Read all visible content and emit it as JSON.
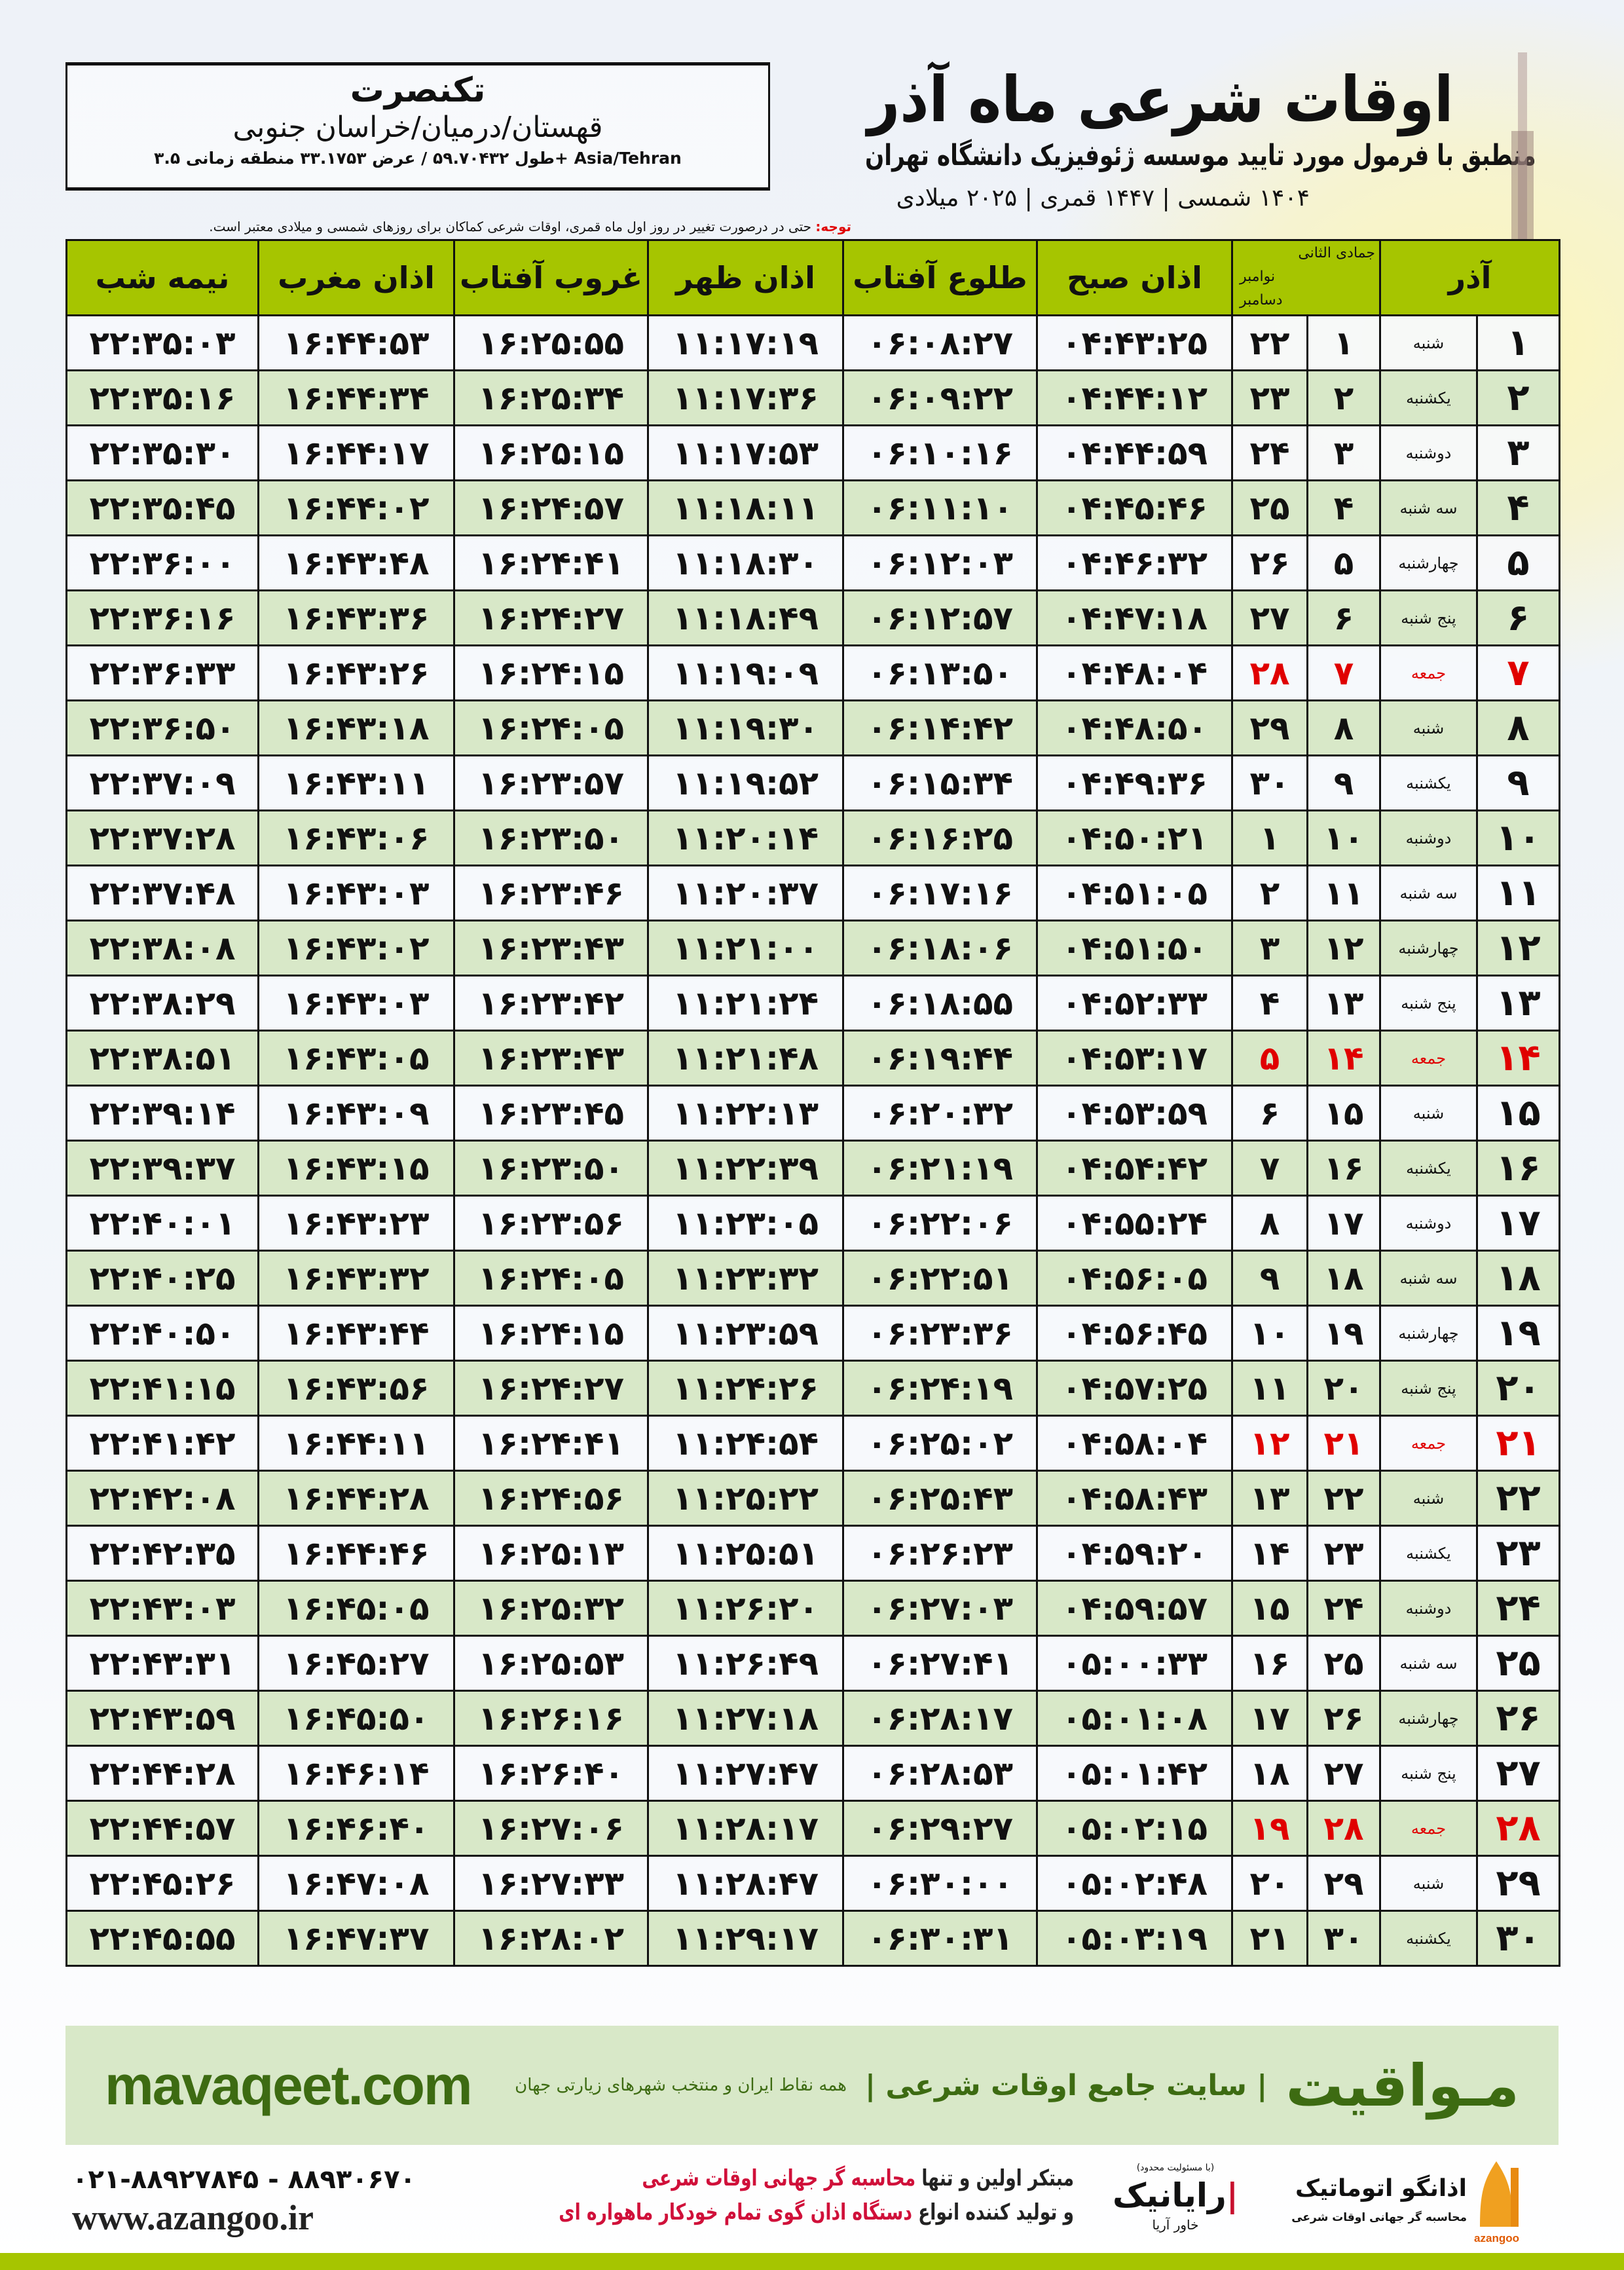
{
  "location": {
    "city": "تکنصرت",
    "region": "قهستان/درمیان/خراسان جنوبی",
    "coords": "طول ۵۹.۷۰۴۳۲ / عرض ۳۳.۱۷۵۳ منطقه زمانی ۳.۵+ Asia/Tehran"
  },
  "header": {
    "title": "اوقات شرعی ماه آذر",
    "subtitle": "منطبق با فرمول مورد تایید موسسه ژئوفیزیک دانشگاه تهران",
    "years": "۱۴۰۴ شمسی | ۱۴۴۷ قمری | ۲۰۲۵ میلادی"
  },
  "note": {
    "label": "توجه:",
    "text": " حتی در درصورت تغییر در روز اول ماه قمری، اوقات شرعی کماکان برای روزهای شمسی و میلادی معتبر است."
  },
  "colors": {
    "header_green": "#a6c500",
    "row_green": "#d8e8c8",
    "holiday": "#e00000",
    "brand": "#3d6b12"
  },
  "table": {
    "columns": {
      "nime_shab": "نیمه شب",
      "maghrib": "اذان مغرب",
      "ghorub": "غروب آفتاب",
      "zohr": "اذان ظهر",
      "tolu": "طلوع آفتاب",
      "sobh": "اذان صبح",
      "lunar_month": "جمادی الثانی",
      "greg_month_1": "نوامبر",
      "greg_month_2": "دسامبر",
      "solar_month": "آذر"
    },
    "holiday_weekday": "جمعه",
    "rows": [
      {
        "azar": "۱",
        "weekday": "شنبه",
        "lunar": "۱",
        "greg": "۲۲",
        "sobh": "۰۴:۴۳:۲۵",
        "tolu": "۰۶:۰۸:۲۷",
        "zohr": "۱۱:۱۷:۱۹",
        "ghorub": "۱۶:۲۵:۵۵",
        "maghrib": "۱۶:۴۴:۵۳",
        "nime": "۲۲:۳۵:۰۳"
      },
      {
        "azar": "۲",
        "weekday": "یکشنبه",
        "lunar": "۲",
        "greg": "۲۳",
        "sobh": "۰۴:۴۴:۱۲",
        "tolu": "۰۶:۰۹:۲۲",
        "zohr": "۱۱:۱۷:۳۶",
        "ghorub": "۱۶:۲۵:۳۴",
        "maghrib": "۱۶:۴۴:۳۴",
        "nime": "۲۲:۳۵:۱۶"
      },
      {
        "azar": "۳",
        "weekday": "دوشنبه",
        "lunar": "۳",
        "greg": "۲۴",
        "sobh": "۰۴:۴۴:۵۹",
        "tolu": "۰۶:۱۰:۱۶",
        "zohr": "۱۱:۱۷:۵۳",
        "ghorub": "۱۶:۲۵:۱۵",
        "maghrib": "۱۶:۴۴:۱۷",
        "nime": "۲۲:۳۵:۳۰"
      },
      {
        "azar": "۴",
        "weekday": "سه شنبه",
        "lunar": "۴",
        "greg": "۲۵",
        "sobh": "۰۴:۴۵:۴۶",
        "tolu": "۰۶:۱۱:۱۰",
        "zohr": "۱۱:۱۸:۱۱",
        "ghorub": "۱۶:۲۴:۵۷",
        "maghrib": "۱۶:۴۴:۰۲",
        "nime": "۲۲:۳۵:۴۵"
      },
      {
        "azar": "۵",
        "weekday": "چهارشنبه",
        "lunar": "۵",
        "greg": "۲۶",
        "sobh": "۰۴:۴۶:۳۲",
        "tolu": "۰۶:۱۲:۰۳",
        "zohr": "۱۱:۱۸:۳۰",
        "ghorub": "۱۶:۲۴:۴۱",
        "maghrib": "۱۶:۴۳:۴۸",
        "nime": "۲۲:۳۶:۰۰"
      },
      {
        "azar": "۶",
        "weekday": "پنج شنبه",
        "lunar": "۶",
        "greg": "۲۷",
        "sobh": "۰۴:۴۷:۱۸",
        "tolu": "۰۶:۱۲:۵۷",
        "zohr": "۱۱:۱۸:۴۹",
        "ghorub": "۱۶:۲۴:۲۷",
        "maghrib": "۱۶:۴۳:۳۶",
        "nime": "۲۲:۳۶:۱۶"
      },
      {
        "azar": "۷",
        "weekday": "جمعه",
        "lunar": "۷",
        "greg": "۲۸",
        "sobh": "۰۴:۴۸:۰۴",
        "tolu": "۰۶:۱۳:۵۰",
        "zohr": "۱۱:۱۹:۰۹",
        "ghorub": "۱۶:۲۴:۱۵",
        "maghrib": "۱۶:۴۳:۲۶",
        "nime": "۲۲:۳۶:۳۳"
      },
      {
        "azar": "۸",
        "weekday": "شنبه",
        "lunar": "۸",
        "greg": "۲۹",
        "sobh": "۰۴:۴۸:۵۰",
        "tolu": "۰۶:۱۴:۴۲",
        "zohr": "۱۱:۱۹:۳۰",
        "ghorub": "۱۶:۲۴:۰۵",
        "maghrib": "۱۶:۴۳:۱۸",
        "nime": "۲۲:۳۶:۵۰"
      },
      {
        "azar": "۹",
        "weekday": "یکشنبه",
        "lunar": "۹",
        "greg": "۳۰",
        "sobh": "۰۴:۴۹:۳۶",
        "tolu": "۰۶:۱۵:۳۴",
        "zohr": "۱۱:۱۹:۵۲",
        "ghorub": "۱۶:۲۳:۵۷",
        "maghrib": "۱۶:۴۳:۱۱",
        "nime": "۲۲:۳۷:۰۹"
      },
      {
        "azar": "۱۰",
        "weekday": "دوشنبه",
        "lunar": "۱۰",
        "greg": "۱",
        "sobh": "۰۴:۵۰:۲۱",
        "tolu": "۰۶:۱۶:۲۵",
        "zohr": "۱۱:۲۰:۱۴",
        "ghorub": "۱۶:۲۳:۵۰",
        "maghrib": "۱۶:۴۳:۰۶",
        "nime": "۲۲:۳۷:۲۸"
      },
      {
        "azar": "۱۱",
        "weekday": "سه شنبه",
        "lunar": "۱۱",
        "greg": "۲",
        "sobh": "۰۴:۵۱:۰۵",
        "tolu": "۰۶:۱۷:۱۶",
        "zohr": "۱۱:۲۰:۳۷",
        "ghorub": "۱۶:۲۳:۴۶",
        "maghrib": "۱۶:۴۳:۰۳",
        "nime": "۲۲:۳۷:۴۸"
      },
      {
        "azar": "۱۲",
        "weekday": "چهارشنبه",
        "lunar": "۱۲",
        "greg": "۳",
        "sobh": "۰۴:۵۱:۵۰",
        "tolu": "۰۶:۱۸:۰۶",
        "zohr": "۱۱:۲۱:۰۰",
        "ghorub": "۱۶:۲۳:۴۳",
        "maghrib": "۱۶:۴۳:۰۲",
        "nime": "۲۲:۳۸:۰۸"
      },
      {
        "azar": "۱۳",
        "weekday": "پنج شنبه",
        "lunar": "۱۳",
        "greg": "۴",
        "sobh": "۰۴:۵۲:۳۳",
        "tolu": "۰۶:۱۸:۵۵",
        "zohr": "۱۱:۲۱:۲۴",
        "ghorub": "۱۶:۲۳:۴۲",
        "maghrib": "۱۶:۴۳:۰۳",
        "nime": "۲۲:۳۸:۲۹"
      },
      {
        "azar": "۱۴",
        "weekday": "جمعه",
        "lunar": "۱۴",
        "greg": "۵",
        "sobh": "۰۴:۵۳:۱۷",
        "tolu": "۰۶:۱۹:۴۴",
        "zohr": "۱۱:۲۱:۴۸",
        "ghorub": "۱۶:۲۳:۴۳",
        "maghrib": "۱۶:۴۳:۰۵",
        "nime": "۲۲:۳۸:۵۱"
      },
      {
        "azar": "۱۵",
        "weekday": "شنبه",
        "lunar": "۱۵",
        "greg": "۶",
        "sobh": "۰۴:۵۳:۵۹",
        "tolu": "۰۶:۲۰:۳۲",
        "zohr": "۱۱:۲۲:۱۳",
        "ghorub": "۱۶:۲۳:۴۵",
        "maghrib": "۱۶:۴۳:۰۹",
        "nime": "۲۲:۳۹:۱۴"
      },
      {
        "azar": "۱۶",
        "weekday": "یکشنبه",
        "lunar": "۱۶",
        "greg": "۷",
        "sobh": "۰۴:۵۴:۴۲",
        "tolu": "۰۶:۲۱:۱۹",
        "zohr": "۱۱:۲۲:۳۹",
        "ghorub": "۱۶:۲۳:۵۰",
        "maghrib": "۱۶:۴۳:۱۵",
        "nime": "۲۲:۳۹:۳۷"
      },
      {
        "azar": "۱۷",
        "weekday": "دوشنبه",
        "lunar": "۱۷",
        "greg": "۸",
        "sobh": "۰۴:۵۵:۲۴",
        "tolu": "۰۶:۲۲:۰۶",
        "zohr": "۱۱:۲۳:۰۵",
        "ghorub": "۱۶:۲۳:۵۶",
        "maghrib": "۱۶:۴۳:۲۳",
        "nime": "۲۲:۴۰:۰۱"
      },
      {
        "azar": "۱۸",
        "weekday": "سه شنبه",
        "lunar": "۱۸",
        "greg": "۹",
        "sobh": "۰۴:۵۶:۰۵",
        "tolu": "۰۶:۲۲:۵۱",
        "zohr": "۱۱:۲۳:۳۲",
        "ghorub": "۱۶:۲۴:۰۵",
        "maghrib": "۱۶:۴۳:۳۲",
        "nime": "۲۲:۴۰:۲۵"
      },
      {
        "azar": "۱۹",
        "weekday": "چهارشنبه",
        "lunar": "۱۹",
        "greg": "۱۰",
        "sobh": "۰۴:۵۶:۴۵",
        "tolu": "۰۶:۲۳:۳۶",
        "zohr": "۱۱:۲۳:۵۹",
        "ghorub": "۱۶:۲۴:۱۵",
        "maghrib": "۱۶:۴۳:۴۴",
        "nime": "۲۲:۴۰:۵۰"
      },
      {
        "azar": "۲۰",
        "weekday": "پنج شنبه",
        "lunar": "۲۰",
        "greg": "۱۱",
        "sobh": "۰۴:۵۷:۲۵",
        "tolu": "۰۶:۲۴:۱۹",
        "zohr": "۱۱:۲۴:۲۶",
        "ghorub": "۱۶:۲۴:۲۷",
        "maghrib": "۱۶:۴۳:۵۶",
        "nime": "۲۲:۴۱:۱۵"
      },
      {
        "azar": "۲۱",
        "weekday": "جمعه",
        "lunar": "۲۱",
        "greg": "۱۲",
        "sobh": "۰۴:۵۸:۰۴",
        "tolu": "۰۶:۲۵:۰۲",
        "zohr": "۱۱:۲۴:۵۴",
        "ghorub": "۱۶:۲۴:۴۱",
        "maghrib": "۱۶:۴۴:۱۱",
        "nime": "۲۲:۴۱:۴۲"
      },
      {
        "azar": "۲۲",
        "weekday": "شنبه",
        "lunar": "۲۲",
        "greg": "۱۳",
        "sobh": "۰۴:۵۸:۴۳",
        "tolu": "۰۶:۲۵:۴۳",
        "zohr": "۱۱:۲۵:۲۲",
        "ghorub": "۱۶:۲۴:۵۶",
        "maghrib": "۱۶:۴۴:۲۸",
        "nime": "۲۲:۴۲:۰۸"
      },
      {
        "azar": "۲۳",
        "weekday": "یکشنبه",
        "lunar": "۲۳",
        "greg": "۱۴",
        "sobh": "۰۴:۵۹:۲۰",
        "tolu": "۰۶:۲۶:۲۳",
        "zohr": "۱۱:۲۵:۵۱",
        "ghorub": "۱۶:۲۵:۱۳",
        "maghrib": "۱۶:۴۴:۴۶",
        "nime": "۲۲:۴۲:۳۵"
      },
      {
        "azar": "۲۴",
        "weekday": "دوشنبه",
        "lunar": "۲۴",
        "greg": "۱۵",
        "sobh": "۰۴:۵۹:۵۷",
        "tolu": "۰۶:۲۷:۰۳",
        "zohr": "۱۱:۲۶:۲۰",
        "ghorub": "۱۶:۲۵:۳۲",
        "maghrib": "۱۶:۴۵:۰۵",
        "nime": "۲۲:۴۳:۰۳"
      },
      {
        "azar": "۲۵",
        "weekday": "سه شنبه",
        "lunar": "۲۵",
        "greg": "۱۶",
        "sobh": "۰۵:۰۰:۳۳",
        "tolu": "۰۶:۲۷:۴۱",
        "zohr": "۱۱:۲۶:۴۹",
        "ghorub": "۱۶:۲۵:۵۳",
        "maghrib": "۱۶:۴۵:۲۷",
        "nime": "۲۲:۴۳:۳۱"
      },
      {
        "azar": "۲۶",
        "weekday": "چهارشنبه",
        "lunar": "۲۶",
        "greg": "۱۷",
        "sobh": "۰۵:۰۱:۰۸",
        "tolu": "۰۶:۲۸:۱۷",
        "zohr": "۱۱:۲۷:۱۸",
        "ghorub": "۱۶:۲۶:۱۶",
        "maghrib": "۱۶:۴۵:۵۰",
        "nime": "۲۲:۴۳:۵۹"
      },
      {
        "azar": "۲۷",
        "weekday": "پنج شنبه",
        "lunar": "۲۷",
        "greg": "۱۸",
        "sobh": "۰۵:۰۱:۴۲",
        "tolu": "۰۶:۲۸:۵۳",
        "zohr": "۱۱:۲۷:۴۷",
        "ghorub": "۱۶:۲۶:۴۰",
        "maghrib": "۱۶:۴۶:۱۴",
        "nime": "۲۲:۴۴:۲۸"
      },
      {
        "azar": "۲۸",
        "weekday": "جمعه",
        "lunar": "۲۸",
        "greg": "۱۹",
        "sobh": "۰۵:۰۲:۱۵",
        "tolu": "۰۶:۲۹:۲۷",
        "zohr": "۱۱:۲۸:۱۷",
        "ghorub": "۱۶:۲۷:۰۶",
        "maghrib": "۱۶:۴۶:۴۰",
        "nime": "۲۲:۴۴:۵۷"
      },
      {
        "azar": "۲۹",
        "weekday": "شنبه",
        "lunar": "۲۹",
        "greg": "۲۰",
        "sobh": "۰۵:۰۲:۴۸",
        "tolu": "۰۶:۳۰:۰۰",
        "zohr": "۱۱:۲۸:۴۷",
        "ghorub": "۱۶:۲۷:۳۳",
        "maghrib": "۱۶:۴۷:۰۸",
        "nime": "۲۲:۴۵:۲۶"
      },
      {
        "azar": "۳۰",
        "weekday": "یکشنبه",
        "lunar": "۳۰",
        "greg": "۲۱",
        "sobh": "۰۵:۰۳:۱۹",
        "tolu": "۰۶:۳۰:۳۱",
        "zohr": "۱۱:۲۹:۱۷",
        "ghorub": "۱۶:۲۸:۰۲",
        "maghrib": "۱۶:۴۷:۳۷",
        "nime": "۲۲:۴۵:۵۵"
      }
    ]
  },
  "footer": {
    "brand": "مـواقیت",
    "tagline": "| سایت جامع اوقات شرعی |",
    "tagline_sub": "همه نقاط ایران و منتخب شهرهای زیارتی جهان",
    "url": "mavaqeet.com",
    "promo_line1_a": "مبتکر اولین و تنها ",
    "promo_line1_b": "محاسبه گر جهانی اوقات شرعی",
    "promo_line2_a": "و تولید کننده انواع ",
    "promo_line2_b": "دستگاه اذان گوی تمام خودکار ماهواره ای",
    "phones": "۰۲۱-۸۸۹۲۷۸۴۵ - ۸۸۹۳۰۶۷۰",
    "website": "www.azangoo.ir",
    "rayanik_note": "(با مسئولیت محدود)",
    "rayanik_name": "رایانیک",
    "rayanik_sub": "خاور آریا",
    "azangoo_name": "اذانگو اتوماتیک",
    "azangoo_sub": "محاسبه گر جهانی اوقات شرعی",
    "azangoo_latin": "azangoo"
  }
}
